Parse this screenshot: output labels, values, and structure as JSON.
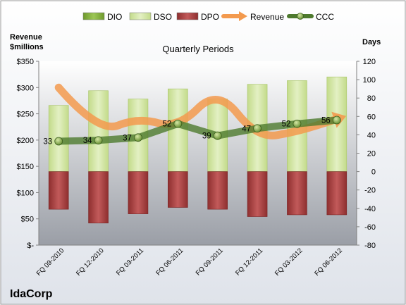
{
  "company": "IdaCorp",
  "chart_data": {
    "type": "bar",
    "title": "Quarterly Periods",
    "y_left_label": [
      "Revenue",
      "$millions"
    ],
    "y_right_label": "Days",
    "categories": [
      "FQ 09-2010",
      "FQ 12-2010",
      "FQ 03-2011",
      "FQ 06-2011",
      "FQ 09-2011",
      "FQ 12-2011",
      "FQ 03-2012",
      "FQ 06-2012"
    ],
    "left_axis": {
      "min": 0,
      "max": 350,
      "step": 50,
      "tick_labels": [
        "$-",
        "$50",
        "$100",
        "$150",
        "$200",
        "$250",
        "$300",
        "$350"
      ]
    },
    "right_axis": {
      "min": -80,
      "max": 120,
      "step": 20,
      "tick_labels": [
        "-80",
        "-60",
        "-40",
        "-20",
        "0",
        "20",
        "40",
        "60",
        "80",
        "100",
        "120"
      ]
    },
    "legend": [
      "DIO",
      "DSO",
      "DPO",
      "Revenue",
      "CCC"
    ],
    "legend_position": "top",
    "series": [
      {
        "name": "DIO",
        "axis": "right",
        "kind": "stacked-bar",
        "color": "#8db346",
        "values": [
          0,
          0,
          0,
          0,
          0,
          0,
          0,
          0
        ]
      },
      {
        "name": "DSO",
        "axis": "right",
        "kind": "stacked-bar",
        "color": "#d4e6a6",
        "values": [
          72,
          88,
          79,
          90,
          79,
          95,
          99,
          103
        ]
      },
      {
        "name": "DPO",
        "axis": "right",
        "kind": "negative-bar",
        "color": "#b84a4a",
        "values": [
          -41,
          -56,
          -46,
          -39,
          -41,
          -49,
          -47,
          -47
        ]
      },
      {
        "name": "Revenue",
        "axis": "left",
        "kind": "line",
        "color": "#f39a4e",
        "values": [
          300,
          213,
          243,
          222,
          298,
          203,
          216,
          240
        ]
      },
      {
        "name": "CCC",
        "axis": "right",
        "kind": "line",
        "color": "#4e7a2e",
        "values": [
          33,
          34,
          37,
          52,
          39,
          47,
          52,
          56
        ]
      }
    ],
    "data_labels": [
      "33",
      "34",
      "37",
      "52",
      "39",
      "47",
      "52",
      "56"
    ],
    "grid": false
  }
}
